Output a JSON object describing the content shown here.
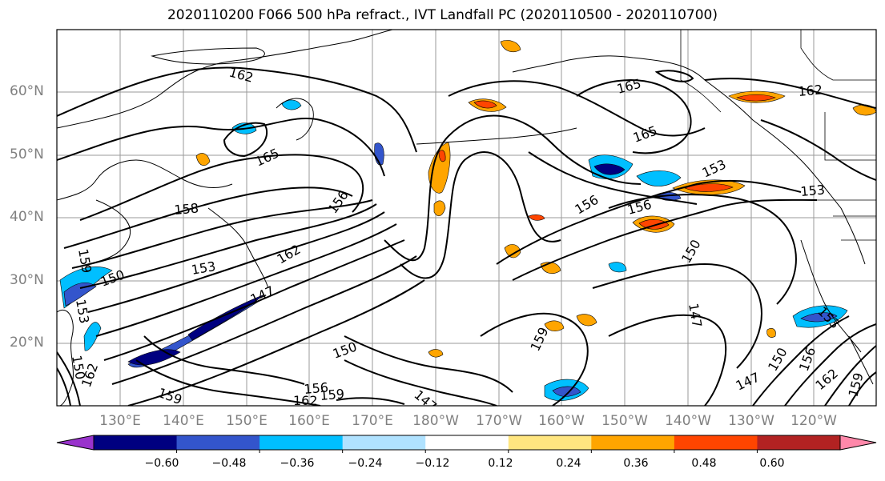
{
  "title": "2020110200 F066 500 hPa refract., IVT Landfall PC (2020110500 - 2020110700)",
  "lat_labels": [
    "60°N",
    "50°N",
    "40°N",
    "30°N",
    "20°N"
  ],
  "lon_labels": [
    "130°E",
    "140°E",
    "150°E",
    "160°E",
    "170°E",
    "180°W",
    "170°W",
    "160°W",
    "150°W",
    "140°W",
    "130°W",
    "120°W"
  ],
  "contour_labels": [
    "162",
    "165",
    "165",
    "165",
    "162",
    "158",
    "156",
    "156",
    "156",
    "153",
    "153",
    "153",
    "150",
    "150",
    "162",
    "147",
    "159",
    "150",
    "159",
    "156",
    "159",
    "162",
    "147",
    "156",
    "162",
    "159",
    "147",
    "150",
    "147",
    "159",
    "153",
    "150",
    "162",
    "153"
  ],
  "colorbar": {
    "tick_labels": [
      "−0.60",
      "−0.48",
      "−0.36",
      "−0.24",
      "−0.12",
      "0.12",
      "0.24",
      "0.36",
      "0.48",
      "0.60"
    ],
    "bin_colors": [
      "#9933cc",
      "#000080",
      "#3355cc",
      "#00bfff",
      "#b0e2ff",
      "#ffffff",
      "#ffe680",
      "#ffa500",
      "#ff4500",
      "#b22222",
      "#ff88aa"
    ]
  }
}
